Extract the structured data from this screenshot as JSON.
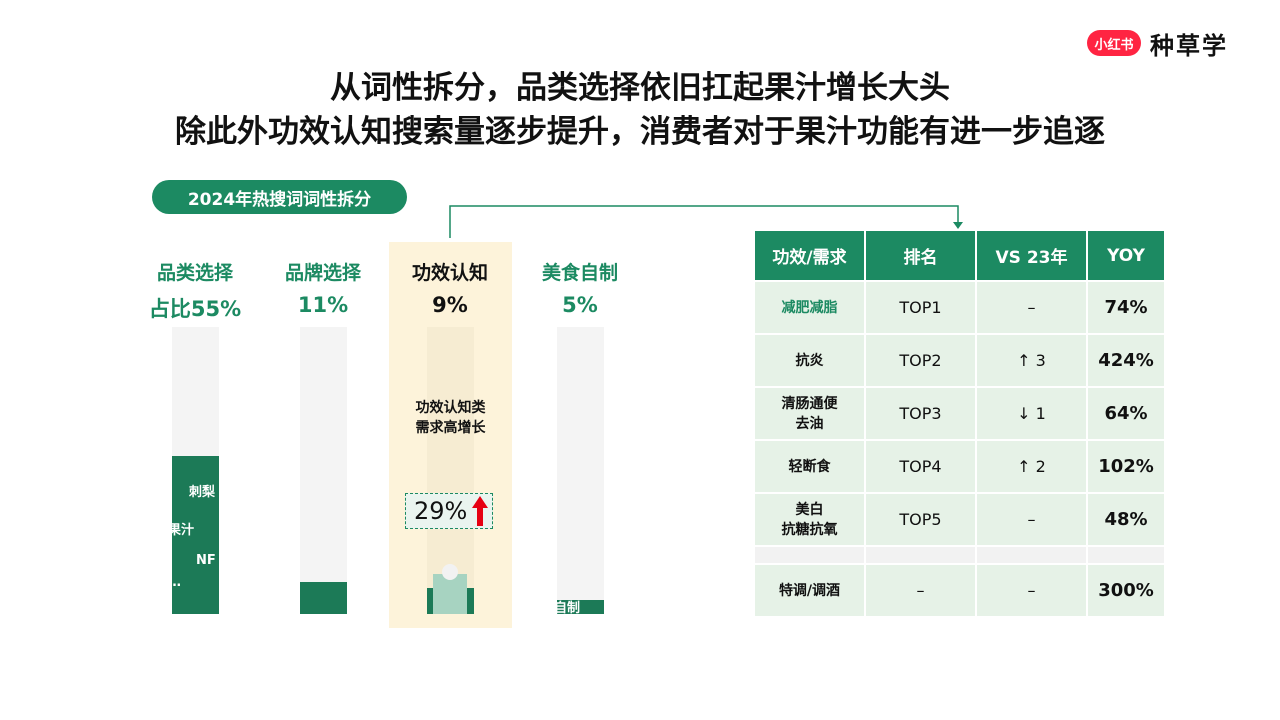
{
  "brand": {
    "logo_text": "小红书",
    "name": "种草学"
  },
  "title": {
    "line1": "从词性拆分，品类选择依旧扛起果汁增长大头",
    "line2": "除此外功效认知搜索量逐步提升，消费者对于果汁功能有进一步追逐"
  },
  "pill_label": "2024年热搜词词性拆分",
  "chart_data": {
    "type": "bar",
    "categories": [
      "品类选择",
      "品牌选择",
      "功效认知",
      "美食自制"
    ],
    "share_labels": [
      "占比55%",
      "11%",
      "9%",
      "5%"
    ],
    "values": [
      55,
      11,
      9,
      5
    ],
    "ylim": [
      0,
      100
    ],
    "highlight_category": "功效认知",
    "bar_inner_labels": {
      "品类选择": [
        "刺梨",
        "果汁",
        "NF",
        "…"
      ],
      "美食自制": [
        "自制"
      ]
    },
    "annotation": {
      "text": "功效认知类需求高增长",
      "line1": "功效认知类",
      "line2": "需求高增长",
      "growth": "29%"
    },
    "colors": {
      "bar": "#1c7a57",
      "accent": "#1c8a62",
      "highlight": "#fdf3da",
      "arrow": "#e60012"
    }
  },
  "table": {
    "headers": [
      "功效/需求",
      "排名",
      "VS 23年",
      "YOY"
    ],
    "rows": [
      {
        "need": [
          "减肥减脂"
        ],
        "rank": "TOP1",
        "vs": "–",
        "yoy": "74%",
        "highlight": true
      },
      {
        "need": [
          "抗炎"
        ],
        "rank": "TOP2",
        "vs": "↑ 3",
        "yoy": "424%"
      },
      {
        "need": [
          "清肠通便",
          "去油"
        ],
        "rank": "TOP3",
        "vs": "↓ 1",
        "yoy": "64%"
      },
      {
        "need": [
          "轻断食"
        ],
        "rank": "TOP4",
        "vs": "↑ 2",
        "yoy": "102%"
      },
      {
        "need": [
          "美白",
          "抗糖抗氧"
        ],
        "rank": "TOP5",
        "vs": "–",
        "yoy": "48%"
      }
    ],
    "extra_row": {
      "need": [
        "特调/调酒"
      ],
      "rank": "–",
      "vs": "–",
      "yoy": "300%"
    }
  }
}
